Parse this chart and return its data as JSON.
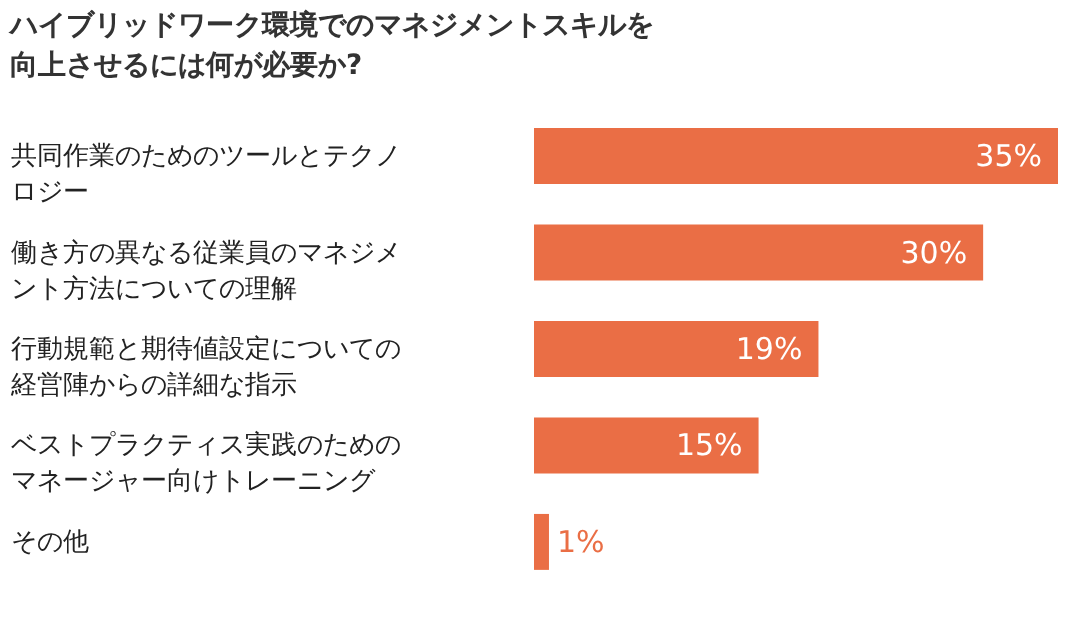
{
  "chart_data": {
    "type": "bar",
    "orientation": "horizontal",
    "title": "ハイブリッドワーク環境でのマネジメントスキルを向上させるには何が必要か?",
    "categories": [
      "共同作業のためのツールとテクノロジー",
      "働き方の異なる従業員のマネジメント方法についての理解",
      "行動規範と期待値設定についての経営陣からの詳細な指示",
      "ベストプラクティス実践のためのマネージャー向けトレーニング",
      "その他"
    ],
    "values": [
      35,
      30,
      19,
      15,
      1
    ],
    "value_labels": [
      "35%",
      "30%",
      "19%",
      "15%",
      "1%"
    ],
    "color": "#ea6e45"
  }
}
